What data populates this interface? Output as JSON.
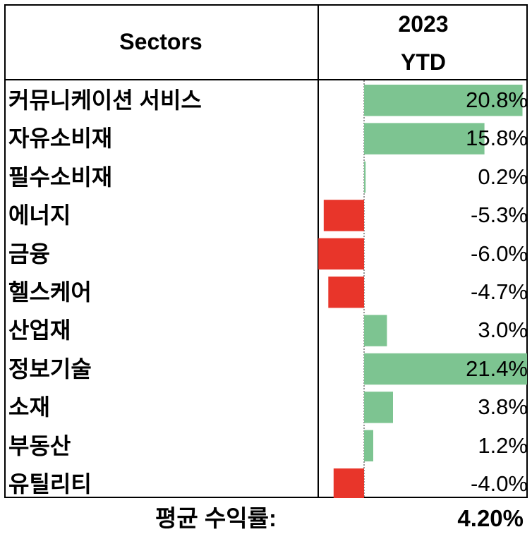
{
  "header": {
    "sectors_label": "Sectors",
    "year": "2023",
    "period": "YTD"
  },
  "colors": {
    "positive": "#7dc491",
    "negative": "#e8352a",
    "border": "#000000"
  },
  "chart_data": {
    "type": "bar",
    "orientation": "horizontal",
    "categories": [
      "커뮤니케이션 서비스",
      "자유소비재",
      "필수소비재",
      "에너지",
      "금융",
      "헬스케어",
      "산업재",
      "정보기술",
      "소재",
      "부동산",
      "유틸리티"
    ],
    "values": [
      20.8,
      15.8,
      0.2,
      -5.3,
      -6.0,
      -4.7,
      3.0,
      21.4,
      3.8,
      1.2,
      -4.0
    ],
    "value_labels": [
      "20.8%",
      "15.8%",
      "0.2%",
      "-5.3%",
      "-6.0%",
      "-4.7%",
      "3.0%",
      "21.4%",
      "3.8%",
      "1.2%",
      "-4.0%"
    ],
    "xlim": [
      -6.0,
      21.4
    ],
    "grid": false
  },
  "footer": {
    "label": "평균 수익률:",
    "value": "4.20%"
  }
}
